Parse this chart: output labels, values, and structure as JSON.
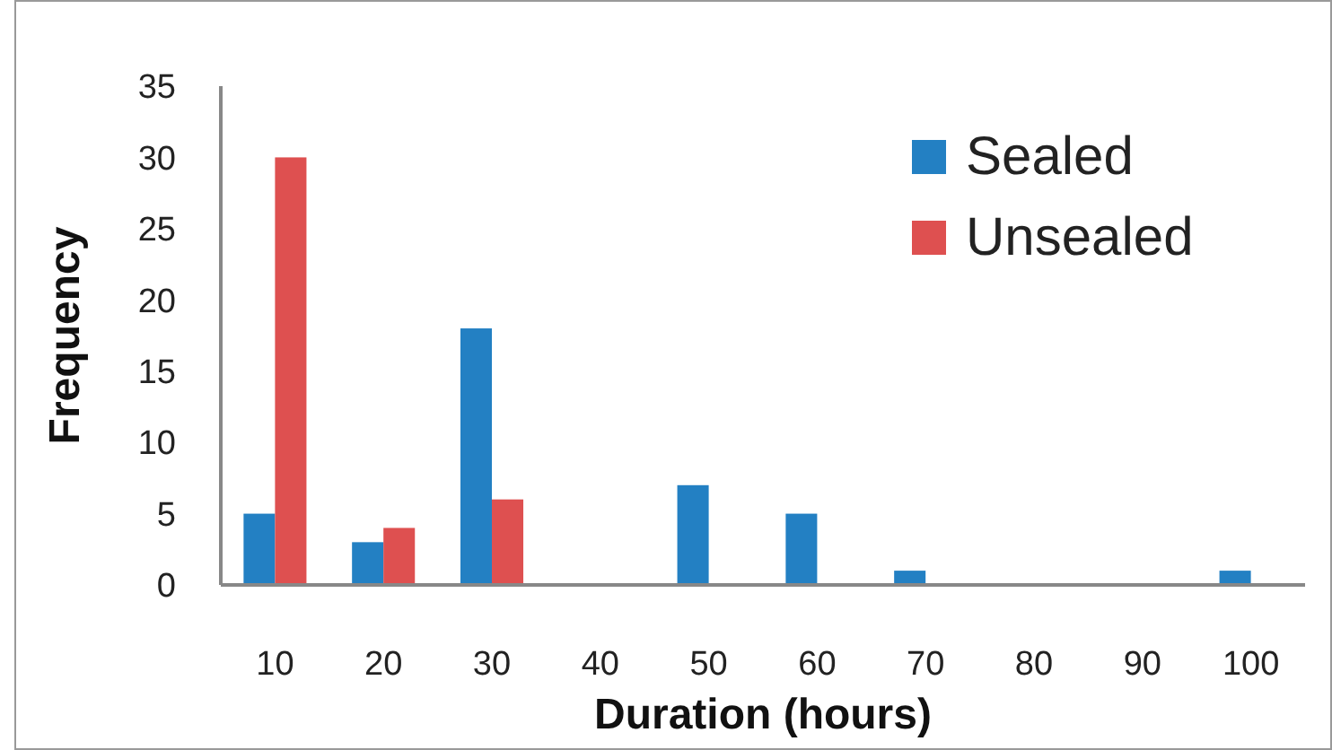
{
  "chart_data": {
    "type": "bar",
    "xlabel": "Duration (hours)",
    "ylabel": "Frequency",
    "categories": [
      "10",
      "20",
      "30",
      "40",
      "50",
      "60",
      "70",
      "80",
      "90",
      "100"
    ],
    "series": [
      {
        "name": "Sealed",
        "color": "#2380c3",
        "values": [
          5,
          3,
          18,
          0,
          7,
          5,
          1,
          0,
          0,
          1
        ]
      },
      {
        "name": "Unsealed",
        "color": "#de5050",
        "values": [
          30,
          4,
          6,
          0,
          0,
          0,
          0,
          0,
          0,
          0
        ]
      }
    ],
    "ylim": [
      0,
      35
    ],
    "yticks": [
      0,
      5,
      10,
      15,
      20,
      25,
      30,
      35
    ],
    "grid": false,
    "legend": "top right"
  }
}
